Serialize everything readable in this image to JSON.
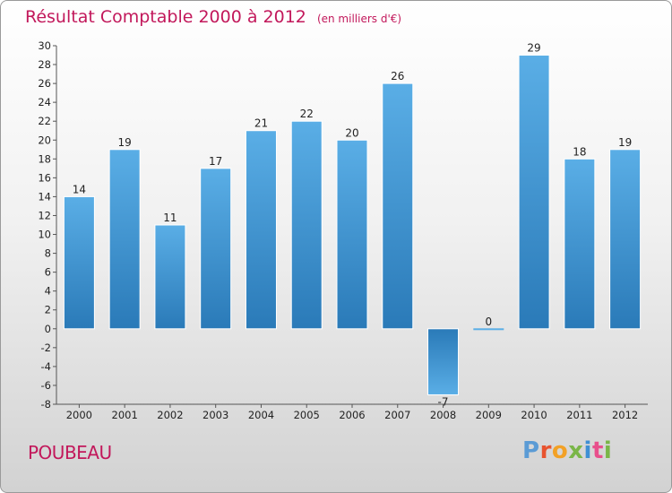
{
  "title": "Résultat Comptable 2000 à 2012",
  "subtitle": "(en milliers d'€)",
  "commune": "POUBEAU",
  "logo": [
    "P",
    "r",
    "o",
    "x",
    "i",
    "t",
    "i"
  ],
  "colors": {
    "title": "#c2185b",
    "bar_top": "#5aaee6",
    "bar_bottom": "#2a7ab8",
    "logo": [
      "#5b9bd5",
      "#e8532f",
      "#f2a126",
      "#7ab648",
      "#3e8fd4",
      "#e84f8c",
      "#7ab648"
    ]
  },
  "chart_data": {
    "type": "bar",
    "title": "Résultat Comptable 2000 à 2012",
    "subtitle": "(en milliers d'€)",
    "categories": [
      "2000",
      "2001",
      "2002",
      "2003",
      "2004",
      "2005",
      "2006",
      "2007",
      "2008",
      "2009",
      "2010",
      "2011",
      "2012"
    ],
    "values": [
      14,
      19,
      11,
      17,
      21,
      22,
      20,
      26,
      -7,
      0,
      29,
      18,
      19
    ],
    "xlabel": "",
    "ylabel": "",
    "ylim": [
      -8,
      30
    ],
    "ytick_step": 2,
    "grid": false
  }
}
